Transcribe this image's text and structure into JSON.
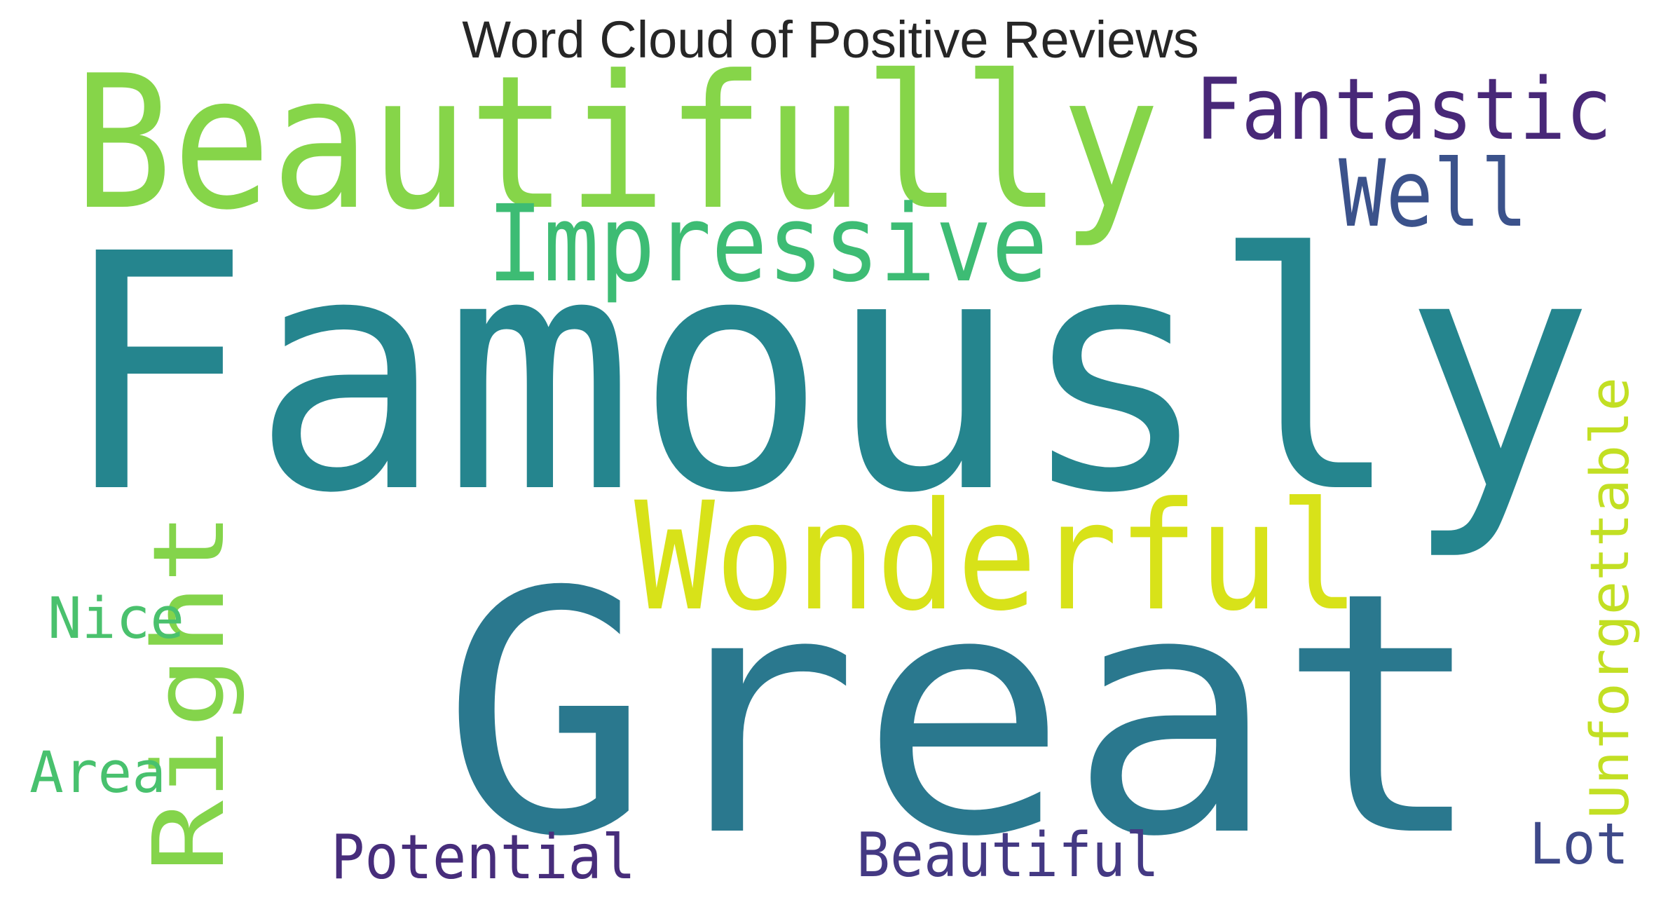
{
  "title": "Word Cloud of Positive Reviews",
  "words": [
    {
      "text": "Famously",
      "color": "#25858e"
    },
    {
      "text": "Great",
      "color": "#2a788e"
    },
    {
      "text": "Beautifully",
      "color": "#86d549"
    },
    {
      "text": "Wonderful",
      "color": "#d8e219"
    },
    {
      "text": "Impressive",
      "color": "#3dbc74"
    },
    {
      "text": "Right",
      "color": "#84d44b"
    },
    {
      "text": "Fantastic",
      "color": "#482878"
    },
    {
      "text": "Well",
      "color": "#3b528b"
    },
    {
      "text": "Unforgettable",
      "color": "#c2df23"
    },
    {
      "text": "Nice",
      "color": "#4ac16d"
    },
    {
      "text": "Area",
      "color": "#48c16e"
    },
    {
      "text": "Potential",
      "color": "#472d7b"
    },
    {
      "text": "Beautiful",
      "color": "#443983"
    },
    {
      "text": "Lot",
      "color": "#3e4989"
    }
  ]
}
